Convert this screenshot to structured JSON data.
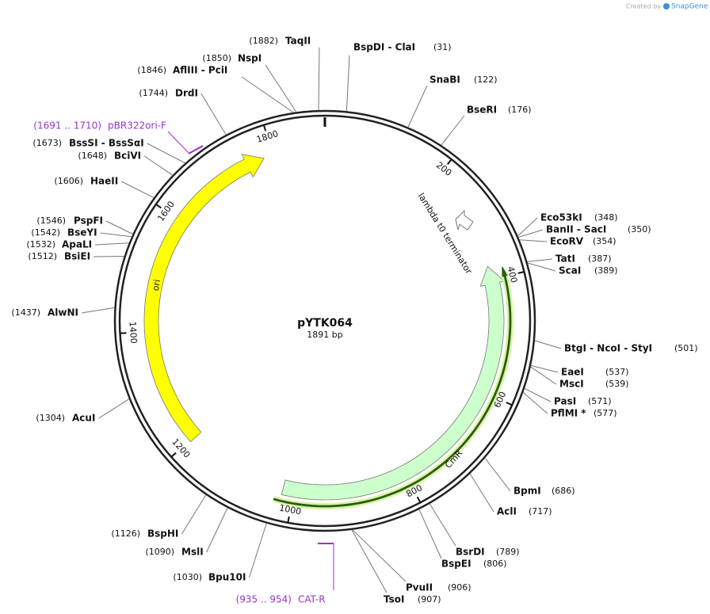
{
  "credit": {
    "prefix": "Created by",
    "brand": "SnapGene"
  },
  "plasmid": {
    "name": "pYTK064",
    "length": {
      "value": 1891,
      "label": "1891 bp"
    }
  },
  "ticks": [
    200,
    400,
    600,
    800,
    1000,
    1200,
    1400,
    1600,
    1800
  ],
  "sites": [
    {
      "name": "BspDI - ClaI",
      "position": {
        "value": 31,
        "label": "(31)"
      }
    },
    {
      "name": "SnaBI",
      "position": {
        "value": 122,
        "label": "(122)"
      }
    },
    {
      "name": "BseRI",
      "position": {
        "value": 176,
        "label": "(176)"
      }
    },
    {
      "name": "Eco53kI",
      "position": {
        "value": 348,
        "label": "(348)"
      }
    },
    {
      "name": "BanII - SacI",
      "position": {
        "value": 350,
        "label": "(350)"
      }
    },
    {
      "name": "EcoRV",
      "position": {
        "value": 354,
        "label": "(354)"
      }
    },
    {
      "name": "TatI",
      "position": {
        "value": 387,
        "label": "(387)"
      }
    },
    {
      "name": "ScaI",
      "position": {
        "value": 389,
        "label": "(389)"
      }
    },
    {
      "name": "BtgI - NcoI - StyI",
      "position": {
        "value": 501,
        "label": "(501)"
      }
    },
    {
      "name": "EaeI",
      "position": {
        "value": 537,
        "label": "(537)"
      }
    },
    {
      "name": "MscI",
      "position": {
        "value": 539,
        "label": "(539)"
      }
    },
    {
      "name": "PasI",
      "position": {
        "value": 571,
        "label": "(571)"
      }
    },
    {
      "name": "PflMI *",
      "position": {
        "value": 577,
        "label": "(577)"
      }
    },
    {
      "name": "BpmI",
      "position": {
        "value": 686,
        "label": "(686)"
      }
    },
    {
      "name": "AclI",
      "position": {
        "value": 717,
        "label": "(717)"
      }
    },
    {
      "name": "BsrDI",
      "position": {
        "value": 789,
        "label": "(789)"
      }
    },
    {
      "name": "BspEI",
      "position": {
        "value": 806,
        "label": "(806)"
      }
    },
    {
      "name": "PvuII",
      "position": {
        "value": 906,
        "label": "(906)"
      }
    },
    {
      "name": "TsoI",
      "position": {
        "value": 907,
        "label": "(907)"
      }
    },
    {
      "name": "Bpu10I",
      "position": {
        "value": 1030,
        "label": "(1030)"
      }
    },
    {
      "name": "MslI",
      "position": {
        "value": 1090,
        "label": "(1090)"
      }
    },
    {
      "name": "BspHI",
      "position": {
        "value": 1126,
        "label": "(1126)"
      }
    },
    {
      "name": "AcuI",
      "position": {
        "value": 1304,
        "label": "(1304)"
      }
    },
    {
      "name": "AlwNI",
      "position": {
        "value": 1437,
        "label": "(1437)"
      }
    },
    {
      "name": "BsiEI",
      "position": {
        "value": 1512,
        "label": "(1512)"
      }
    },
    {
      "name": "ApaLI",
      "position": {
        "value": 1532,
        "label": "(1532)"
      }
    },
    {
      "name": "BseYI",
      "position": {
        "value": 1542,
        "label": "(1542)"
      }
    },
    {
      "name": "PspFI",
      "position": {
        "value": 1546,
        "label": "(1546)"
      }
    },
    {
      "name": "HaeII",
      "position": {
        "value": 1606,
        "label": "(1606)"
      }
    },
    {
      "name": "BciVI",
      "position": {
        "value": 1648,
        "label": "(1648)"
      }
    },
    {
      "name": "BssSI - BssSαI",
      "position": {
        "value": 1673,
        "label": "(1673)"
      }
    },
    {
      "name": "DrdI",
      "position": {
        "value": 1744,
        "label": "(1744)"
      }
    },
    {
      "name": "AflIII - PciI",
      "position": {
        "value": 1846,
        "label": "(1846)"
      }
    },
    {
      "name": "NspI",
      "position": {
        "value": 1850,
        "label": "(1850)"
      }
    },
    {
      "name": "TaqII",
      "position": {
        "value": 1882,
        "label": "(1882)"
      }
    }
  ],
  "features": [
    {
      "label": "ori"
    },
    {
      "label": "CmR"
    },
    {
      "label": "lambda t0 terminator"
    }
  ],
  "primers": [
    {
      "range": "(1691 .. 1710)",
      "name": "pBR322ori-F"
    },
    {
      "range": "(935 .. 954)",
      "name": "CAT-R"
    }
  ]
}
